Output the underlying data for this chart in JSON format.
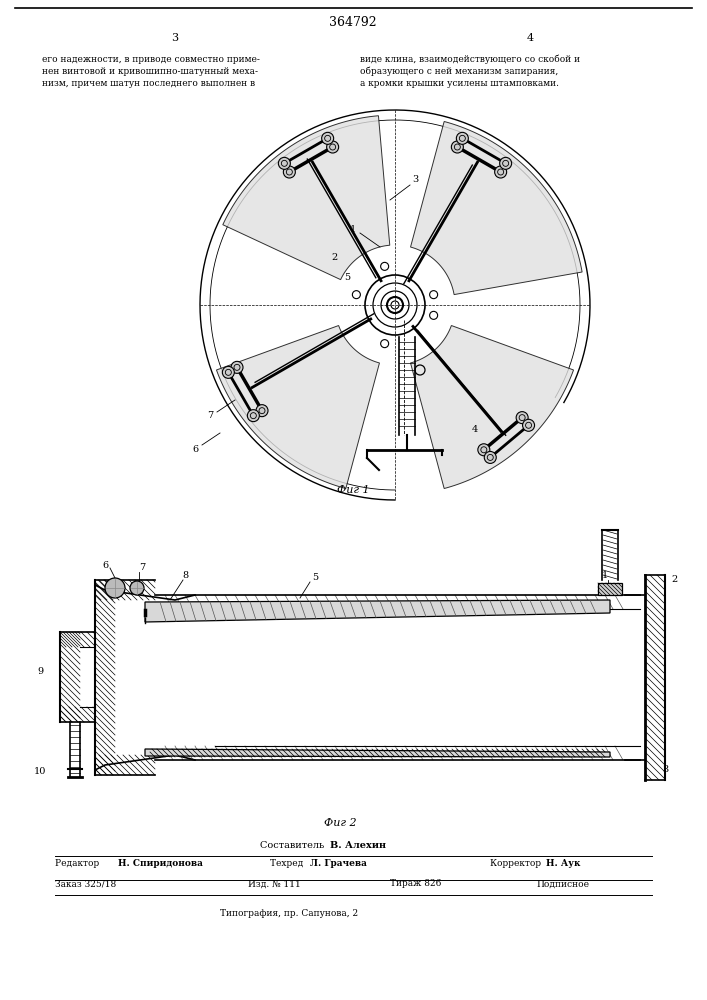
{
  "patent_number": "364792",
  "page_left": "3",
  "page_right": "4",
  "text_left": "его надежности, в приводе совместно приме-\nнен винтовой и кривошипно-шатунный меха-\nнизм, причем шатун последнего выполнен в",
  "text_right": "виде клина, взаимодействующего со скобой и\nобразующего с ней механизм запирания,\nа кромки крышки усилены штамповками.",
  "fig1_caption": "Фиг 1",
  "fig2_caption": "Фиг 2",
  "compiler_label_prefix": "Составитель ",
  "compiler_name": "В. Алехин",
  "editor_prefix": "Редактор ",
  "editor_name": "Н. Спиридонова",
  "techred_prefix": "Техред ",
  "techred_name": "Л. Грачева",
  "corrector_prefix": "Корректор ",
  "corrector_name": "Н. Аук",
  "order_label": "Заказ 325/18",
  "izdanie_label": "Изд. № 111",
  "tirazh_label": "Тираж 826",
  "podpisnoe_label": "Подписное",
  "tipografia_label": "Типография, пр. Сапунова, 2",
  "bg_color": "#ffffff",
  "fig_width": 7.07,
  "fig_height": 10.0,
  "dpi": 100
}
